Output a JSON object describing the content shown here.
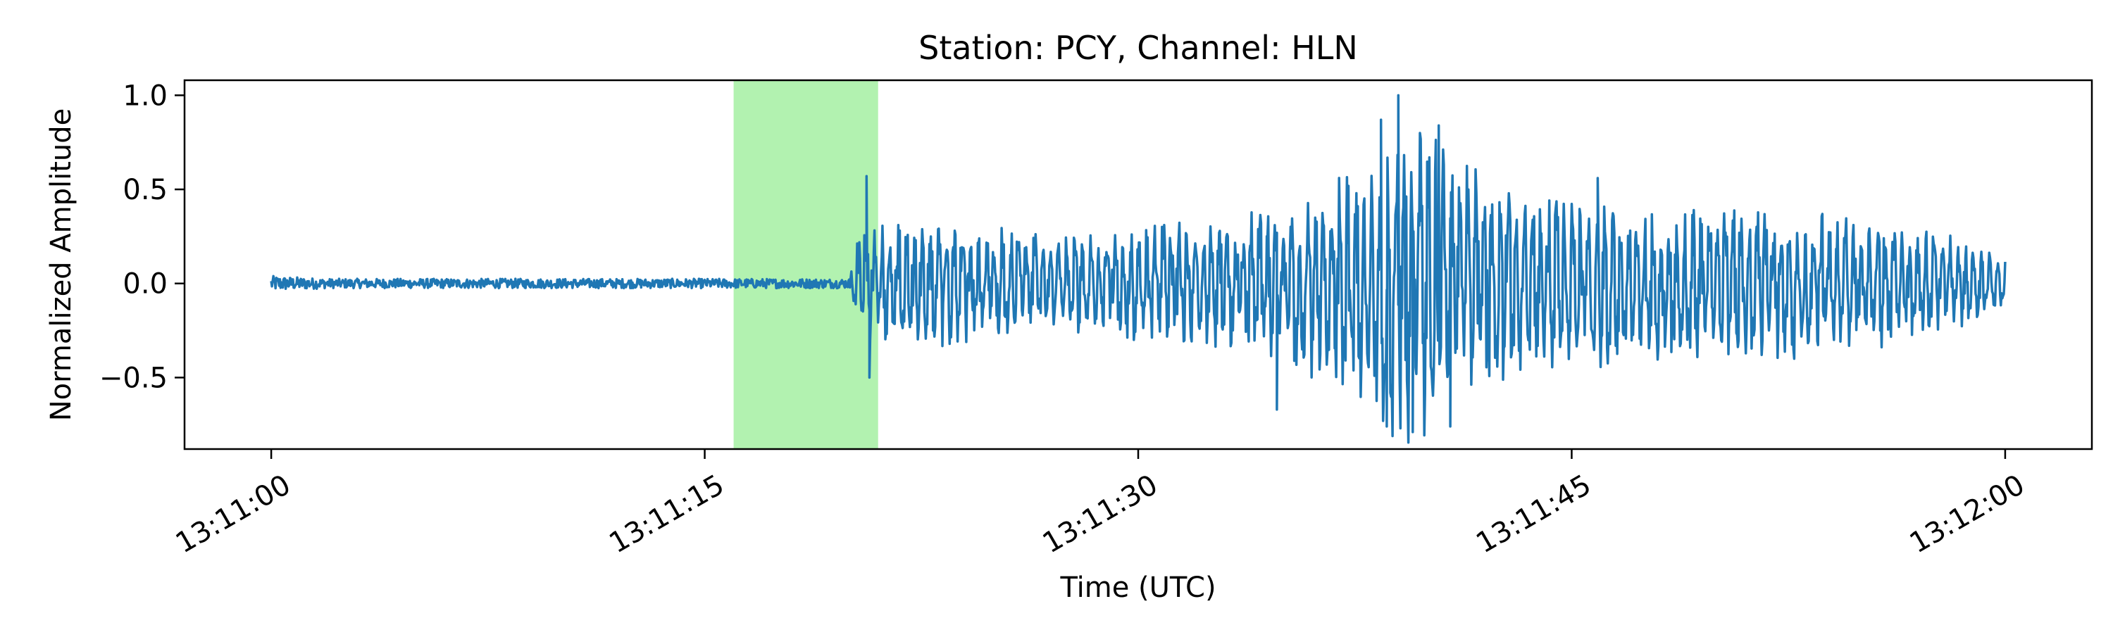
{
  "chart_data": {
    "type": "line",
    "title": "Station: PCY, Channel: HLN",
    "xlabel": "Time (UTC)",
    "ylabel": "Normalized Amplitude",
    "x_unit": "time of day (UTC)",
    "x_range": [
      "13:10:57",
      "13:12:03"
    ],
    "x_start": "13:11:00",
    "x_end": "13:12:00",
    "xticks": [
      "13:11:00",
      "13:11:15",
      "13:11:30",
      "13:11:45",
      "13:12:00"
    ],
    "ylim": [
      -0.88,
      1.08
    ],
    "yticks": [
      1.0,
      0.5,
      0.0,
      -0.5
    ],
    "ytick_labels": [
      "1.0",
      "0.5",
      "0.0",
      "−0.5"
    ],
    "grid": false,
    "highlight": {
      "start": "13:11:16",
      "end": "13:11:21",
      "color": "#b2f2b0"
    },
    "series": [
      {
        "color": "#1f77b4",
        "envelope": [
          {
            "t": "13:11:00",
            "amp": 0.04
          },
          {
            "t": "13:11:02",
            "amp": 0.025
          },
          {
            "t": "13:11:20",
            "amp": 0.025
          },
          {
            "t": "13:11:20.4",
            "amp": 0.35
          },
          {
            "t": "13:11:23",
            "amp": 0.35
          },
          {
            "t": "13:11:27",
            "amp": 0.28
          },
          {
            "t": "13:11:34",
            "amp": 0.38
          },
          {
            "t": "13:11:36",
            "amp": 0.5
          },
          {
            "t": "13:11:38",
            "amp": 0.65
          },
          {
            "t": "13:11:39",
            "amp": 0.9
          },
          {
            "t": "13:11:41",
            "amp": 0.75
          },
          {
            "t": "13:11:43",
            "amp": 0.5
          },
          {
            "t": "13:11:48",
            "amp": 0.42
          },
          {
            "t": "13:11:52",
            "amp": 0.42
          },
          {
            "t": "13:11:58",
            "amp": 0.3
          },
          {
            "t": "13:12:00",
            "amp": 0.12
          }
        ],
        "peaks": [
          {
            "t": "13:11:20.6",
            "y": 0.57
          },
          {
            "t": "13:11:20.7",
            "y": -0.5
          },
          {
            "t": "13:11:34.8",
            "y": -0.67
          },
          {
            "t": "13:11:38.4",
            "y": 0.87
          },
          {
            "t": "13:11:38.6",
            "y": -0.76
          },
          {
            "t": "13:11:39.0",
            "y": 1.0
          },
          {
            "t": "13:11:39.5",
            "y": -0.79
          },
          {
            "t": "13:11:40.4",
            "y": 0.84
          },
          {
            "t": "13:11:40.8",
            "y": -0.76
          },
          {
            "t": "13:11:45.9",
            "y": 0.56
          }
        ]
      }
    ]
  }
}
